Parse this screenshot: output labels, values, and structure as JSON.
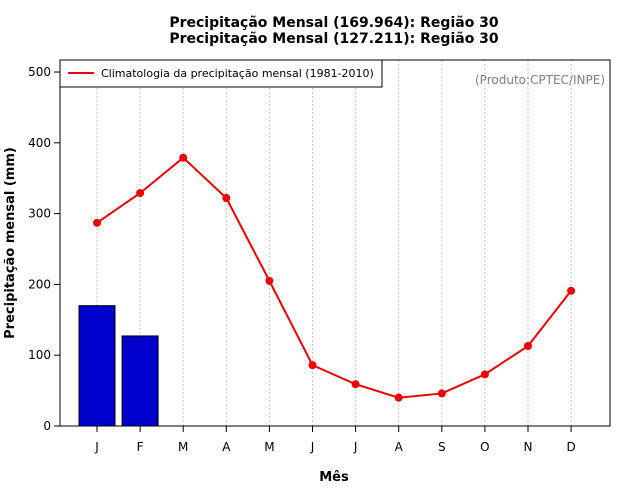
{
  "chart_data": {
    "type": "bar",
    "title_lines": [
      "Precipitação Mensal (169.964): Região 30",
      "Precipitação Mensal (127.211): Região 30"
    ],
    "xlabel": "Mês",
    "ylabel": "Precipitação mensal (mm)",
    "categories": [
      "J",
      "F",
      "M",
      "A",
      "M",
      "J",
      "J",
      "A",
      "S",
      "O",
      "N",
      "D"
    ],
    "ylim": [
      0,
      500
    ],
    "yticks": [
      0,
      100,
      200,
      300,
      400,
      500
    ],
    "grid": "vertical dotted",
    "legend_placement": "top-left",
    "annotation": "(Produto:CPTEC/INPE)",
    "series": [
      {
        "type": "bar",
        "color": "#0000cc",
        "values": [
          169.964,
          127.211,
          null,
          null,
          null,
          null,
          null,
          null,
          null,
          null,
          null,
          null
        ]
      },
      {
        "name": "Climatologia da precipitação mensal (1981-2010)",
        "type": "line",
        "color": "#ee0000",
        "values": [
          287,
          329,
          379,
          322,
          205,
          86,
          59,
          40,
          46,
          73,
          113,
          191
        ]
      }
    ]
  }
}
